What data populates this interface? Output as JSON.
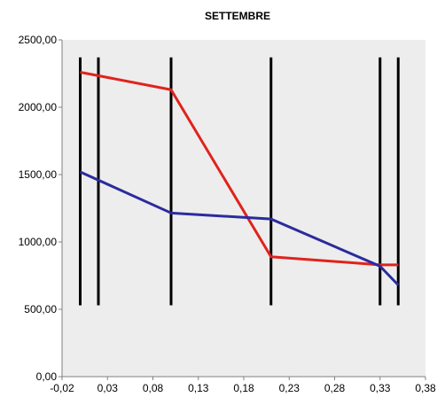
{
  "chart_data": {
    "type": "line",
    "title": "SETTEMBRE",
    "xlabel": "",
    "ylabel": "",
    "xlim": [
      -0.02,
      0.38
    ],
    "ylim": [
      0,
      2500
    ],
    "x_ticks": [
      -0.02,
      0.03,
      0.08,
      0.13,
      0.18,
      0.23,
      0.28,
      0.33,
      0.38
    ],
    "x_tick_labels": [
      "-0,02",
      "0,03",
      "0,08",
      "0,13",
      "0,18",
      "0,23",
      "0,28",
      "0,33",
      "0,38"
    ],
    "y_ticks": [
      0,
      500,
      1000,
      1500,
      2000,
      2500
    ],
    "y_tick_labels": [
      "0,00",
      "500,00",
      "1000,00",
      "1500,00",
      "2000,00",
      "2500,00"
    ],
    "grid": false,
    "legend": "none",
    "plot_background": "#ededed",
    "series": [
      {
        "color": "#e0231b",
        "points": [
          [
            0.0,
            2260
          ],
          [
            0.1,
            2130
          ],
          [
            0.21,
            890
          ],
          [
            0.33,
            830
          ],
          [
            0.35,
            830
          ]
        ]
      },
      {
        "color": "#2b2b9e",
        "points": [
          [
            0.0,
            1520
          ],
          [
            0.1,
            1215
          ],
          [
            0.21,
            1170
          ],
          [
            0.33,
            820
          ],
          [
            0.35,
            680
          ]
        ]
      }
    ],
    "vertical_markers": {
      "color": "#000000",
      "x": [
        0.0,
        0.02,
        0.1,
        0.21,
        0.33,
        0.35
      ],
      "y_range": [
        530,
        2370
      ]
    }
  }
}
